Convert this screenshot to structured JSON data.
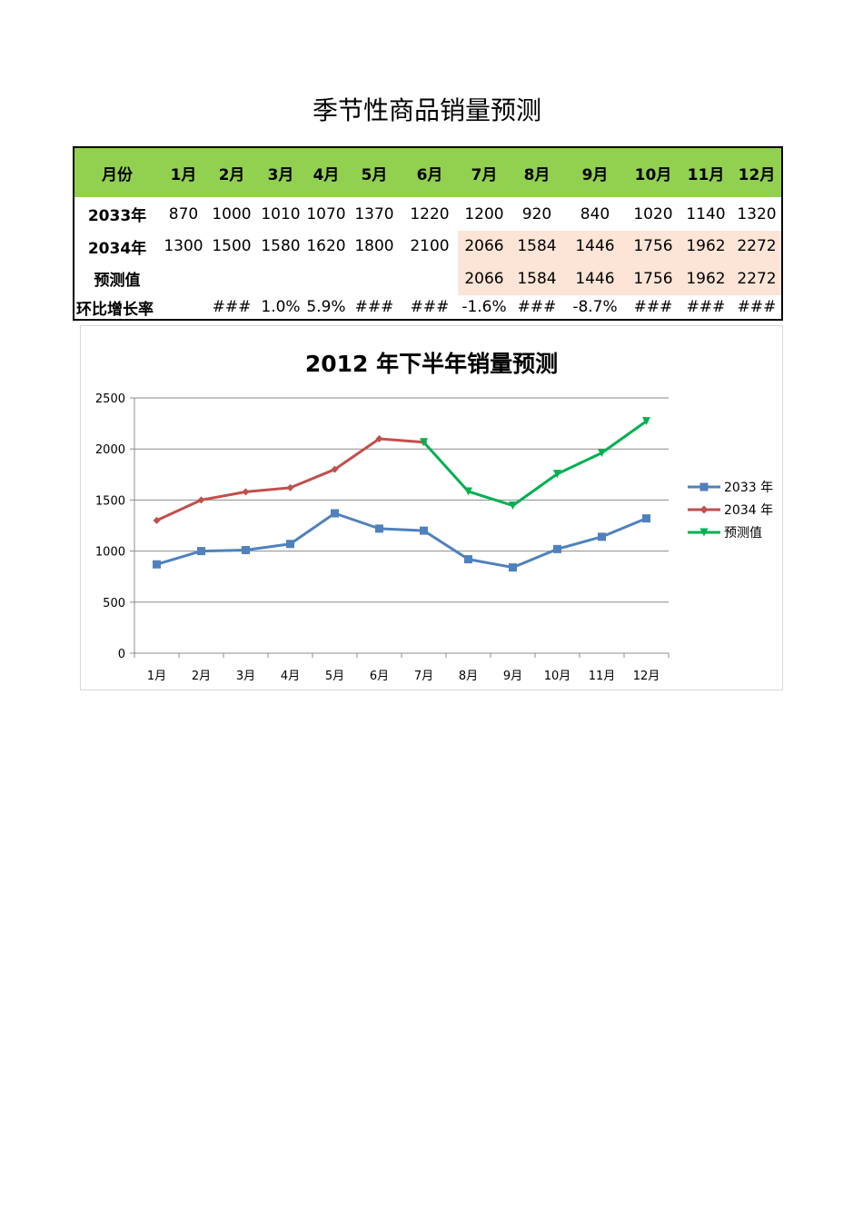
{
  "page": {
    "title": "季节性商品销量预测"
  },
  "table": {
    "header": {
      "label": "月份",
      "months": [
        "1月",
        "2月",
        "3月",
        "4月",
        "5月",
        "6月",
        "7月",
        "8月",
        "9月",
        "10月",
        "11月",
        "12月"
      ]
    },
    "rows": [
      {
        "label": "2033年",
        "values": [
          "870",
          "1000",
          "1010",
          "1070",
          "1370",
          "1220",
          "1200",
          "920",
          "840",
          "1020",
          "1140",
          "1320"
        ]
      },
      {
        "label": "2034年",
        "values": [
          "1300",
          "1500",
          "1580",
          "1620",
          "1800",
          "2100",
          "2066",
          "1584",
          "1446",
          "1756",
          "1962",
          "2272"
        ]
      },
      {
        "label": "预测值",
        "values": [
          "",
          "",
          "",
          "",
          "",
          "",
          "2066",
          "1584",
          "1446",
          "1756",
          "1962",
          "2272"
        ]
      },
      {
        "label": "环比增长率",
        "values": [
          "",
          "###",
          "1.0%",
          "5.9%",
          "###",
          "###",
          "-1.6%",
          "###",
          "-8.7%",
          "###",
          "###",
          "###"
        ]
      }
    ],
    "colors": {
      "header_bg": "#92d050",
      "forecast_bg": "#fce4d6"
    }
  },
  "chart_data": {
    "type": "line",
    "title": "2012 年下半年销量预测",
    "categories": [
      "1月",
      "2月",
      "3月",
      "4月",
      "5月",
      "6月",
      "7月",
      "8月",
      "9月",
      "10月",
      "11月",
      "12月"
    ],
    "series": [
      {
        "name": "2033 年",
        "color": "#4f81bd",
        "marker": "square",
        "values": [
          870,
          1000,
          1010,
          1070,
          1370,
          1220,
          1200,
          920,
          840,
          1020,
          1140,
          1320
        ]
      },
      {
        "name": "2034 年",
        "color": "#c0504d",
        "marker": "diamond",
        "values": [
          1300,
          1500,
          1580,
          1620,
          1800,
          2100,
          2066,
          1584,
          1446,
          1756,
          1962,
          2272
        ]
      },
      {
        "name": "预测值",
        "color": "#00b050",
        "marker": "triangle-down",
        "values": [
          null,
          null,
          null,
          null,
          null,
          null,
          2066,
          1584,
          1446,
          1756,
          1962,
          2272
        ]
      }
    ],
    "xlabel": "",
    "ylabel": "",
    "yticks": [
      "0",
      "500",
      "1000",
      "1500",
      "2000",
      "2500"
    ],
    "ylim": [
      0,
      2500
    ],
    "grid": true,
    "legend_position": "right"
  }
}
